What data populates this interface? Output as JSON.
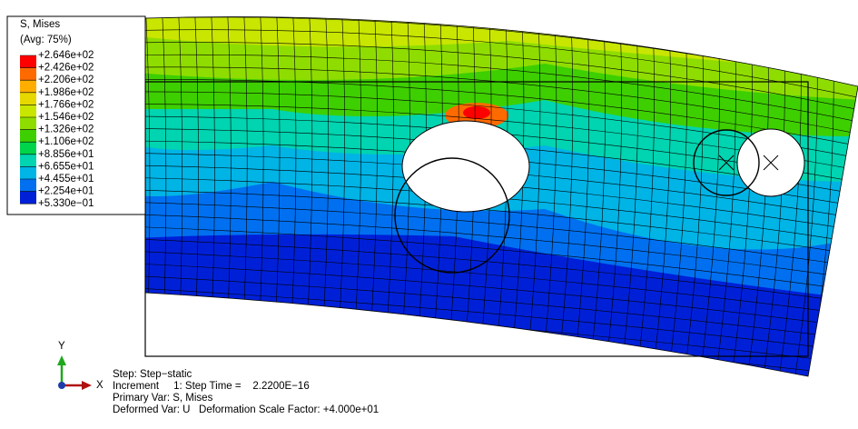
{
  "legend": {
    "title": "S, Mises",
    "subtitle": "(Avg: 75%)",
    "labels": [
      "+2.646e+02",
      "+2.426e+02",
      "+2.206e+02",
      "+1.986e+02",
      "+1.766e+02",
      "+1.546e+02",
      "+1.326e+02",
      "+1.106e+02",
      "+8.856e+01",
      "+6.655e+01",
      "+4.455e+01",
      "+2.254e+01",
      "+5.330e−01"
    ],
    "colors": [
      "#ff0000",
      "#ff6a00",
      "#ffae00",
      "#e6d800",
      "#c8e600",
      "#8fdd00",
      "#3ecf00",
      "#00d44a",
      "#00d4b0",
      "#00b4e6",
      "#0070f0",
      "#0020d8"
    ]
  },
  "triad": {
    "y": "Y",
    "x": "X"
  },
  "info": {
    "step": "Step: Step−static",
    "increment": "Increment     1: Step Time =    2.2200E−16",
    "primary": "Primary Var: S, Mises",
    "deformed": "Deformed Var: U   Deformation Scale Factor: +4.000e+01"
  }
}
